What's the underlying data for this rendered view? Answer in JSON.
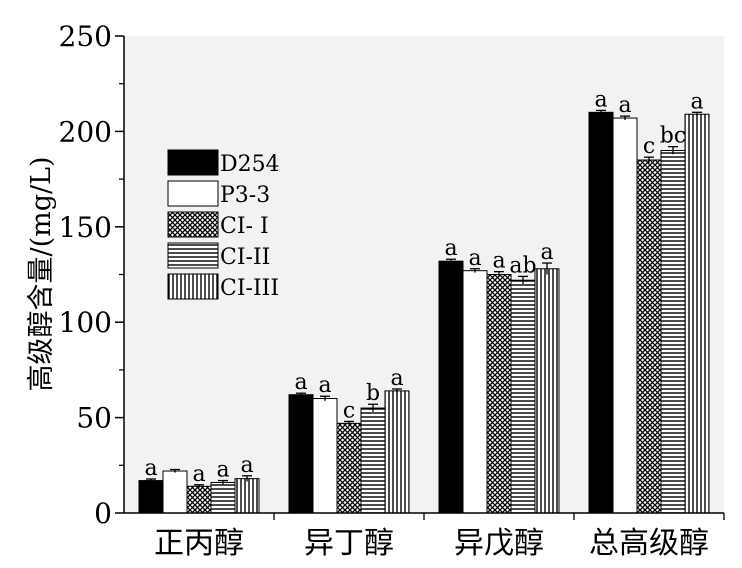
{
  "chart_data": {
    "type": "bar",
    "title": "",
    "xlabel": "",
    "ylabel": "高级醇含量/(mg/L)",
    "ylim": [
      0,
      250
    ],
    "yticks": [
      0,
      50,
      100,
      150,
      200,
      250
    ],
    "categories": [
      "正丙醇",
      "异丁醇",
      "异戊醇",
      "总高级醇"
    ],
    "legend_position": "upper-left",
    "series": [
      {
        "name": "D254",
        "pattern": "solid-black",
        "values": [
          17,
          62,
          132,
          210
        ],
        "errors": [
          0.8,
          0.8,
          1.0,
          1.0
        ],
        "labels": [
          "a",
          "a",
          "a",
          "a"
        ]
      },
      {
        "name": "P3-3",
        "pattern": "white",
        "values": [
          22,
          60,
          127,
          207
        ],
        "errors": [
          0.8,
          1.2,
          1.0,
          1.0
        ],
        "labels": [
          "",
          "a",
          "a",
          "a"
        ]
      },
      {
        "name": "CI- I",
        "pattern": "crosshatch",
        "values": [
          14,
          47,
          125,
          185
        ],
        "errors": [
          0.8,
          1.0,
          1.5,
          1.5
        ],
        "labels": [
          "a",
          "c",
          "a",
          "c"
        ]
      },
      {
        "name": "CI-II",
        "pattern": "horizontal-lines",
        "values": [
          16,
          55,
          122,
          190
        ],
        "errors": [
          1.0,
          2.0,
          2.0,
          2.0
        ],
        "labels": [
          "a",
          "b",
          "ab",
          "bc"
        ]
      },
      {
        "name": "CI-III",
        "pattern": "vertical-lines",
        "values": [
          18,
          64,
          128,
          209
        ],
        "errors": [
          1.5,
          1.0,
          3.0,
          1.0
        ],
        "labels": [
          "a",
          "a",
          "a",
          "a"
        ]
      }
    ]
  }
}
